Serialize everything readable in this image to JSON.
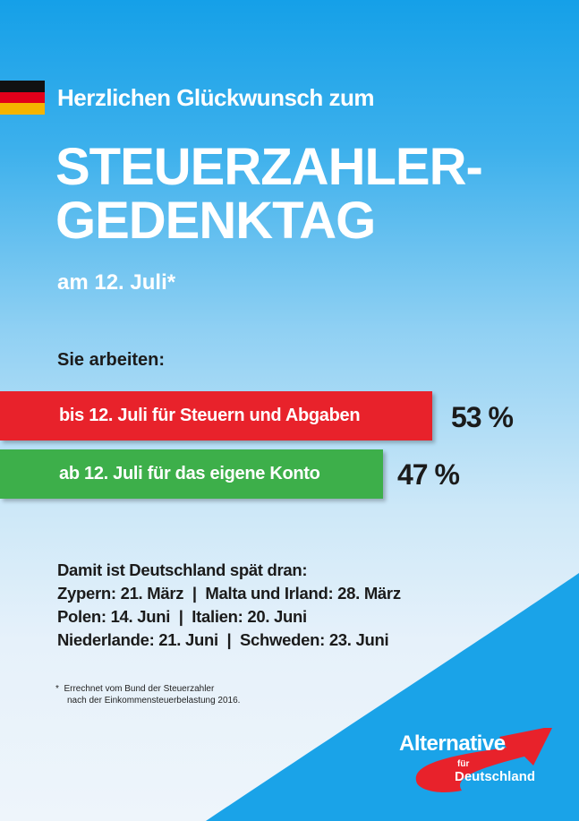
{
  "header": {
    "greeting": "Herzlichen Glückwunsch zum",
    "title_line1": "STEUERZAHLER-",
    "title_line2": "GEDENKTAG",
    "date": "am 12. Juli*"
  },
  "intro": "Sie arbeiten:",
  "bars": [
    {
      "label": "bis 12. Juli für Steuern und Abgaben",
      "value": "53 %",
      "percent": 53,
      "color": "#e8222b"
    },
    {
      "label": "ab 12. Juli für das eigene Konto",
      "value": "47 %",
      "percent": 47,
      "color": "#3daf4a"
    }
  ],
  "comparison": {
    "heading": "Damit ist Deutschland spät dran:",
    "lines": [
      "Zypern: 21. März  |  Malta und Irland: 28. März",
      "Polen: 14. Juni  |  Italien: 20. Juni",
      "Niederlande: 21. Juni  |  Schweden: 23. Juni"
    ]
  },
  "footnote": {
    "line1": "*  Errechnet vom Bund der Steuerzahler",
    "line2": "nach der Einkommensteuerbelastung 2016."
  },
  "logo": {
    "line1": "Alternative",
    "line2": "für",
    "line3": "Deutschland"
  },
  "colors": {
    "blue": "#1aa3e8",
    "red": "#e8222b",
    "green": "#3daf4a"
  }
}
